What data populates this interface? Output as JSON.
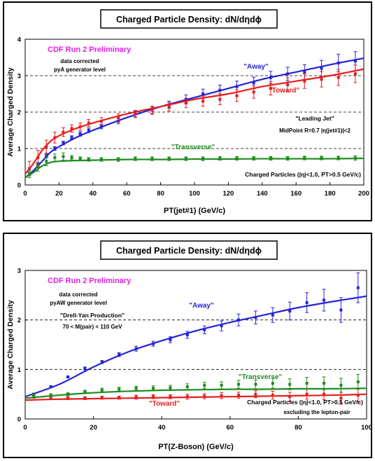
{
  "chart_data": [
    {
      "type": "scatter",
      "title": "Charged Particle Density: dN/dηdϕ",
      "xlabel": "PT(jet#1)  (GeV/c)",
      "ylabel": "Average Charged Density",
      "xlim": [
        0,
        200
      ],
      "ylim": [
        0,
        4
      ],
      "xticks": [
        "0",
        "20",
        "40",
        "60",
        "80",
        "100",
        "120",
        "140",
        "160",
        "180",
        "200"
      ],
      "yticks": [
        "0",
        "1",
        "2",
        "3",
        "4"
      ],
      "dashed_lines": [
        1,
        2,
        3
      ],
      "annotations": [
        {
          "text": "CDF Run 2 Preliminary",
          "color": "#e61ee6"
        },
        {
          "text": "data corrected",
          "color": "#000000"
        },
        {
          "text": "pyA generator level",
          "color": "#000000"
        },
        {
          "text": "\"Leading Jet\"",
          "color": "#000000"
        },
        {
          "text": "MidPoint R=0.7 |η(jet#1)|<2",
          "color": "#000000"
        },
        {
          "text": "Charged Particles (|η|<1.0, PT>0.5 GeV/c)",
          "color": "#000000"
        }
      ],
      "series": [
        {
          "name": "\"Away\"",
          "color": "#2424d6",
          "x": [
            2.5,
            7.5,
            12.5,
            17.5,
            22.5,
            27.5,
            32.5,
            37.5,
            45,
            55,
            65,
            75,
            85,
            95,
            105,
            115,
            125,
            135,
            145,
            155,
            165,
            175,
            185,
            195
          ],
          "y": [
            0.3,
            0.55,
            0.8,
            1.0,
            1.15,
            1.3,
            1.4,
            1.5,
            1.6,
            1.75,
            1.95,
            2.05,
            2.2,
            2.35,
            2.5,
            2.6,
            2.7,
            2.8,
            2.95,
            3.05,
            3.1,
            3.2,
            3.35,
            3.4
          ],
          "err": [
            0.05,
            0.05,
            0.05,
            0.05,
            0.05,
            0.05,
            0.06,
            0.06,
            0.06,
            0.07,
            0.08,
            0.09,
            0.1,
            0.12,
            0.13,
            0.14,
            0.15,
            0.16,
            0.17,
            0.18,
            0.2,
            0.22,
            0.24,
            0.26
          ],
          "curve_x": [
            0,
            5,
            10,
            15,
            20,
            30,
            40,
            60,
            80,
            100,
            120,
            140,
            160,
            180,
            200
          ],
          "curve_y": [
            0.2,
            0.4,
            0.65,
            0.9,
            1.05,
            1.3,
            1.5,
            1.85,
            2.15,
            2.4,
            2.65,
            2.9,
            3.1,
            3.3,
            3.48
          ]
        },
        {
          "name": "\"Toward\"",
          "color": "#e61e1e",
          "x": [
            2.5,
            7.5,
            12.5,
            17.5,
            22.5,
            27.5,
            32.5,
            37.5,
            45,
            55,
            65,
            75,
            85,
            95,
            105,
            115,
            125,
            135,
            145,
            155,
            165,
            175,
            185,
            195
          ],
          "y": [
            0.45,
            0.75,
            1.05,
            1.3,
            1.45,
            1.55,
            1.6,
            1.7,
            1.75,
            1.85,
            1.95,
            2.05,
            2.15,
            2.25,
            2.3,
            2.35,
            2.45,
            2.55,
            2.65,
            2.75,
            2.85,
            2.9,
            2.95,
            3.05
          ],
          "err": [
            0.2,
            0.2,
            0.18,
            0.15,
            0.12,
            0.1,
            0.1,
            0.1,
            0.1,
            0.1,
            0.1,
            0.11,
            0.12,
            0.13,
            0.14,
            0.15,
            0.16,
            0.17,
            0.18,
            0.19,
            0.2,
            0.21,
            0.22,
            0.24
          ],
          "curve_x": [
            0,
            5,
            10,
            15,
            20,
            30,
            40,
            60,
            80,
            100,
            120,
            140,
            160,
            180,
            200
          ],
          "curve_y": [
            0.3,
            0.6,
            0.95,
            1.2,
            1.35,
            1.55,
            1.7,
            1.95,
            2.15,
            2.35,
            2.5,
            2.7,
            2.85,
            3.0,
            3.18
          ]
        },
        {
          "name": "\"Transverse\"",
          "color": "#1e8c1e",
          "x": [
            2.5,
            7.5,
            12.5,
            17.5,
            22.5,
            27.5,
            32.5,
            37.5,
            45,
            55,
            65,
            75,
            85,
            95,
            105,
            115,
            125,
            135,
            145,
            155,
            165,
            175,
            185,
            195
          ],
          "y": [
            0.3,
            0.5,
            0.65,
            0.75,
            0.78,
            0.75,
            0.72,
            0.7,
            0.7,
            0.7,
            0.72,
            0.72,
            0.72,
            0.72,
            0.72,
            0.73,
            0.73,
            0.73,
            0.73,
            0.73,
            0.74,
            0.74,
            0.74,
            0.74
          ],
          "err": [
            0.1,
            0.12,
            0.12,
            0.1,
            0.1,
            0.06,
            0.05,
            0.05,
            0.05,
            0.05,
            0.05,
            0.05,
            0.05,
            0.05,
            0.05,
            0.05,
            0.05,
            0.05,
            0.05,
            0.05,
            0.05,
            0.05,
            0.05,
            0.06
          ],
          "curve_x": [
            0,
            5,
            10,
            15,
            20,
            30,
            40,
            60,
            80,
            100,
            120,
            140,
            160,
            180,
            200
          ],
          "curve_y": [
            0.2,
            0.35,
            0.52,
            0.62,
            0.65,
            0.67,
            0.68,
            0.7,
            0.7,
            0.71,
            0.71,
            0.72,
            0.72,
            0.72,
            0.73
          ]
        }
      ]
    },
    {
      "type": "scatter",
      "title": "Charged Particle Density: dN/dηdϕ",
      "xlabel": "PT(Z-Boson)  (GeV/c)",
      "ylabel": "Average Charged Density",
      "xlim": [
        0,
        100
      ],
      "ylim": [
        0,
        3
      ],
      "xticks": [
        "0",
        "20",
        "40",
        "60",
        "80",
        "100"
      ],
      "yticks": [
        "0",
        "1",
        "2",
        "3"
      ],
      "dashed_lines": [
        1,
        2
      ],
      "annotations": [
        {
          "text": "CDF Run 2 Preliminary",
          "color": "#e61ee6"
        },
        {
          "text": "data corrected",
          "color": "#000000"
        },
        {
          "text": "pyAW generator level",
          "color": "#000000"
        },
        {
          "text": "\"Drell-Yan Production\"",
          "color": "#000000"
        },
        {
          "text": "70 < M(pair) < 110 GeV",
          "color": "#000000"
        },
        {
          "text": "Charged Particles (|η|<1.0, PT>0.5 GeV/c)",
          "color": "#000000"
        },
        {
          "text": "excluding the lepton-pair",
          "color": "#000000"
        }
      ],
      "series": [
        {
          "name": "\"Away\"",
          "color": "#2424d6",
          "x": [
            2.5,
            7.5,
            12.5,
            17.5,
            22.5,
            27.5,
            32.5,
            37.5,
            42.5,
            47.5,
            52.5,
            57.5,
            62.5,
            67.5,
            72.5,
            77.5,
            82.5,
            87.5,
            92.5,
            97.5
          ],
          "y": [
            0.5,
            0.65,
            0.85,
            1.02,
            1.15,
            1.3,
            1.42,
            1.52,
            1.6,
            1.7,
            1.8,
            1.88,
            2.0,
            2.05,
            2.1,
            2.18,
            2.35,
            2.4,
            2.2,
            2.65
          ],
          "err": [
            0.02,
            0.02,
            0.02,
            0.03,
            0.03,
            0.04,
            0.05,
            0.05,
            0.06,
            0.07,
            0.08,
            0.1,
            0.12,
            0.13,
            0.15,
            0.18,
            0.2,
            0.22,
            0.25,
            0.3
          ],
          "curve_x": [
            0,
            10,
            20,
            30,
            40,
            50,
            60,
            70,
            80,
            90,
            100
          ],
          "curve_y": [
            0.45,
            0.7,
            1.05,
            1.35,
            1.58,
            1.78,
            1.95,
            2.1,
            2.25,
            2.37,
            2.48
          ]
        },
        {
          "name": "\"Toward\"",
          "color": "#e61e1e",
          "x": [
            2.5,
            7.5,
            12.5,
            17.5,
            22.5,
            27.5,
            32.5,
            37.5,
            42.5,
            47.5,
            52.5,
            57.5,
            62.5,
            67.5,
            72.5,
            77.5,
            82.5,
            87.5,
            92.5,
            97.5
          ],
          "y": [
            0.45,
            0.43,
            0.42,
            0.42,
            0.43,
            0.43,
            0.44,
            0.45,
            0.45,
            0.45,
            0.46,
            0.47,
            0.48,
            0.5,
            0.48,
            0.45,
            0.5,
            0.5,
            0.42,
            0.48
          ],
          "err": [
            0.03,
            0.03,
            0.03,
            0.03,
            0.03,
            0.03,
            0.04,
            0.04,
            0.04,
            0.05,
            0.05,
            0.06,
            0.06,
            0.07,
            0.08,
            0.09,
            0.1,
            0.11,
            0.12,
            0.14
          ],
          "curve_x": [
            0,
            10,
            20,
            30,
            40,
            50,
            60,
            70,
            80,
            90,
            100
          ],
          "curve_y": [
            0.38,
            0.4,
            0.41,
            0.42,
            0.43,
            0.44,
            0.45,
            0.46,
            0.47,
            0.48,
            0.5
          ]
        },
        {
          "name": "\"Transverse\"",
          "color": "#1e8c1e",
          "x": [
            2.5,
            7.5,
            12.5,
            17.5,
            22.5,
            27.5,
            32.5,
            37.5,
            42.5,
            47.5,
            52.5,
            57.5,
            62.5,
            67.5,
            72.5,
            77.5,
            82.5,
            87.5,
            92.5,
            97.5
          ],
          "y": [
            0.47,
            0.48,
            0.5,
            0.55,
            0.58,
            0.6,
            0.62,
            0.62,
            0.63,
            0.65,
            0.68,
            0.68,
            0.7,
            0.7,
            0.72,
            0.7,
            0.72,
            0.72,
            0.68,
            0.75
          ],
          "err": [
            0.03,
            0.03,
            0.03,
            0.03,
            0.04,
            0.04,
            0.04,
            0.05,
            0.05,
            0.06,
            0.06,
            0.07,
            0.08,
            0.09,
            0.1,
            0.11,
            0.12,
            0.13,
            0.14,
            0.15
          ],
          "curve_x": [
            0,
            10,
            20,
            30,
            40,
            50,
            60,
            70,
            80,
            90,
            100
          ],
          "curve_y": [
            0.42,
            0.48,
            0.53,
            0.56,
            0.58,
            0.59,
            0.6,
            0.6,
            0.61,
            0.61,
            0.62
          ]
        }
      ]
    }
  ]
}
